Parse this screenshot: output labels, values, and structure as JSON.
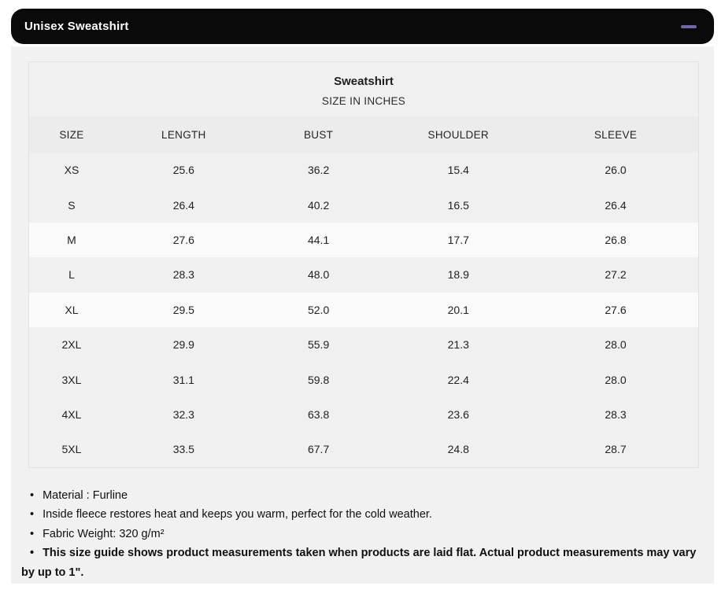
{
  "accordion": {
    "title": "Unisex Sweatshirt",
    "collapse_icon": "minus",
    "accent_color": "#7165ab",
    "bar_color": "#0a0a0a"
  },
  "size_chart": {
    "title": "Sweatshirt",
    "subtitle": "SIZE IN INCHES",
    "columns": [
      "SIZE",
      "LENGTH",
      "BUST",
      "SHOULDER",
      "SLEEVE"
    ],
    "rows": [
      [
        "XS",
        "25.6",
        "36.2",
        "15.4",
        "26.0"
      ],
      [
        "S",
        "26.4",
        "40.2",
        "16.5",
        "26.4"
      ],
      [
        "M",
        "27.6",
        "44.1",
        "17.7",
        "26.8"
      ],
      [
        "L",
        "28.3",
        "48.0",
        "18.9",
        "27.2"
      ],
      [
        "XL",
        "29.5",
        "52.0",
        "20.1",
        "27.6"
      ],
      [
        "2XL",
        "29.9",
        "55.9",
        "21.3",
        "28.0"
      ],
      [
        "3XL",
        "31.1",
        "59.8",
        "22.4",
        "28.0"
      ],
      [
        "4XL",
        "32.3",
        "63.8",
        "23.6",
        "28.3"
      ],
      [
        "5XL",
        "33.5",
        "67.7",
        "24.8",
        "28.7"
      ]
    ]
  },
  "notes": [
    "Material : Furline",
    "Inside fleece restores heat and keeps you warm, perfect for the cold weather.",
    "Fabric Weight: 320 g/m²",
    "This size guide shows product measurements taken when products are laid flat. Actual product measurements may vary by up to 1\"."
  ]
}
